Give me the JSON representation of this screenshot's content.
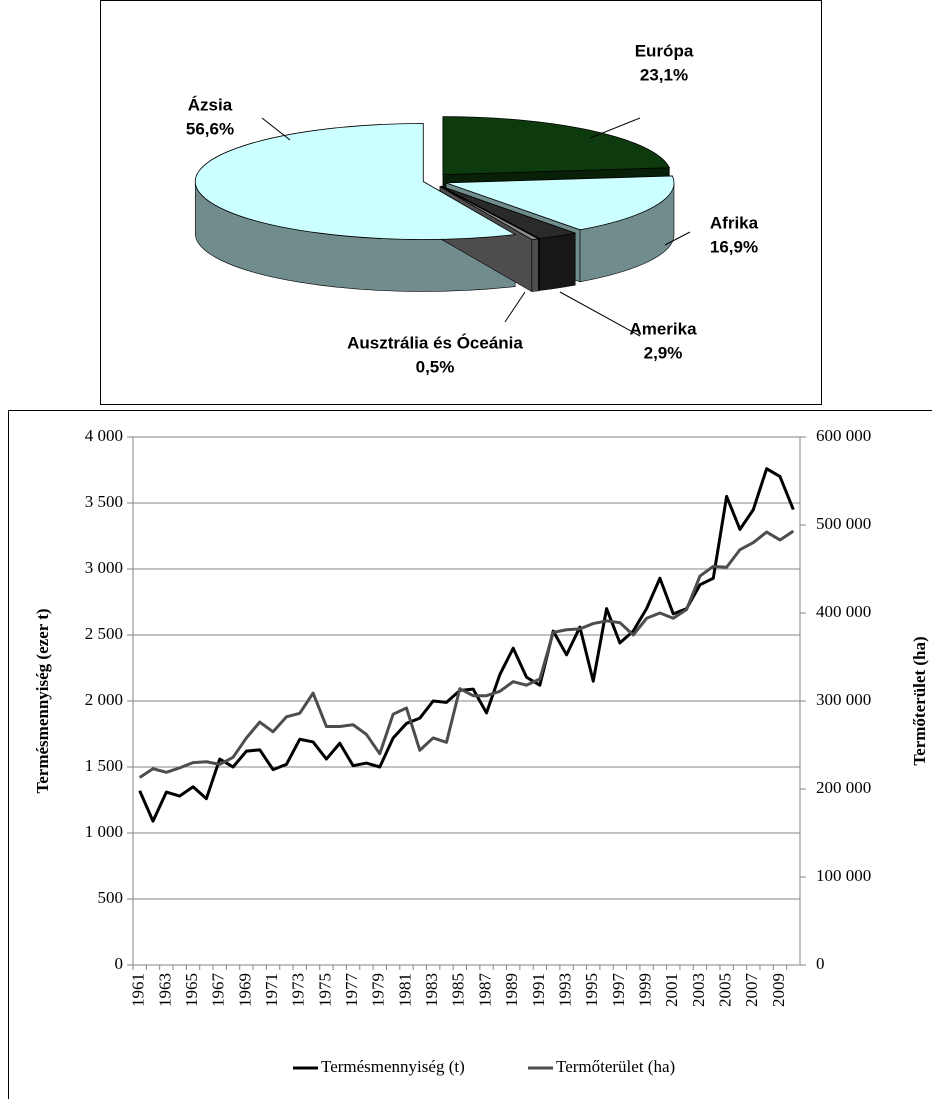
{
  "chart_data": [
    {
      "type": "pie",
      "categories": [
        "Európa",
        "Afrika",
        "Amerika",
        "Ausztrália és Óceánia",
        "Ázsia"
      ],
      "values": [
        23.1,
        16.9,
        2.9,
        0.5,
        56.6
      ],
      "value_labels": [
        "23,1%",
        "16,9%",
        "2,9%",
        "0,5%",
        "56,6%"
      ],
      "colors": [
        "#0d3b0d",
        "#ccffff",
        "#2a2a2a",
        "#8c8c8c",
        "#ccffff"
      ]
    },
    {
      "type": "line",
      "categories": [
        "1961",
        null,
        "1963",
        null,
        "1965",
        null,
        "1967",
        null,
        "1969",
        null,
        "1971",
        null,
        "1973",
        null,
        "1975",
        null,
        "1977",
        null,
        "1979",
        null,
        "1981",
        null,
        "1983",
        null,
        "1985",
        null,
        "1987",
        null,
        "1989",
        null,
        "1991",
        null,
        "1993",
        null,
        "1995",
        null,
        "1997",
        null,
        "1999",
        null,
        "2001",
        null,
        "2003",
        null,
        "2005",
        null,
        "2007",
        null,
        "2009",
        null
      ],
      "y_label": "Termésmennyiség (ezer t)",
      "y2_label": "Termőterület (ha)",
      "ylim": [
        0,
        4000
      ],
      "yticks": [
        {
          "value": 4000,
          "label": "4 000"
        },
        {
          "value": 3500,
          "label": "3 500"
        },
        {
          "value": 3000,
          "label": "3 000"
        },
        {
          "value": 2500,
          "label": "2 500"
        },
        {
          "value": 2000,
          "label": "2 000"
        },
        {
          "value": 1500,
          "label": "1 500"
        },
        {
          "value": 1000,
          "label": "1 000"
        },
        500,
        0
      ],
      "y2lim": [
        0,
        600000
      ],
      "y2ticks": [
        {
          "value": 600000,
          "label": "600 000"
        },
        {
          "value": 500000,
          "label": "500 000"
        },
        {
          "value": 400000,
          "label": "400 000"
        },
        {
          "value": 300000,
          "label": "300 000"
        },
        {
          "value": 200000,
          "label": "200 000"
        },
        {
          "value": 100000,
          "label": "100 000"
        },
        0
      ],
      "grid": true,
      "legend": "bottom",
      "series": [
        {
          "name": "Termésmennyiség (t)",
          "color": "#000000",
          "values": [
            1320,
            1090,
            1310,
            1280,
            1350,
            1260,
            1560,
            1500,
            1620,
            1630,
            1480,
            1520,
            1710,
            1690,
            1560,
            1680,
            1510,
            1530,
            1500,
            1720,
            1830,
            1870,
            2000,
            1990,
            2080,
            2090,
            1910,
            2200,
            2400,
            2180,
            2120,
            2530,
            2350,
            2560,
            2150,
            2700,
            2440,
            2530,
            2700,
            2930,
            2660,
            2700,
            2880,
            2930,
            3550,
            3300,
            3450,
            3760,
            3700,
            3450
          ]
        },
        {
          "name": "Termőterület (ha)",
          "color": "#4d4d4d",
          "axis": "y2",
          "values": [
            213000,
            223000,
            219000,
            224000,
            230000,
            231000,
            228000,
            236000,
            258000,
            276000,
            265000,
            282000,
            286000,
            309000,
            271000,
            271000,
            273000,
            262000,
            240000,
            285000,
            292000,
            244000,
            258000,
            253000,
            314000,
            306000,
            306000,
            311000,
            322000,
            318000,
            325000,
            378000,
            381000,
            382000,
            388000,
            391000,
            389000,
            375000,
            394000,
            400000,
            394000,
            404000,
            442000,
            453000,
            452000,
            472000,
            480000,
            492000,
            483000,
            493000
          ]
        }
      ]
    }
  ]
}
